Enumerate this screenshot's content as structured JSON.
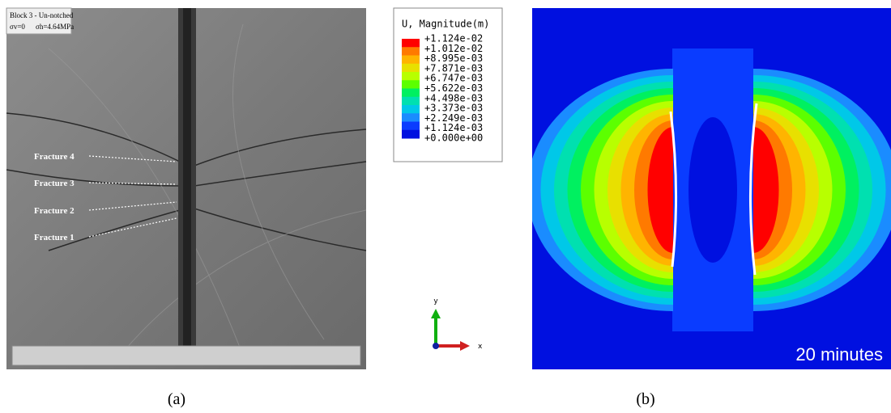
{
  "panel_a": {
    "label": "(a)",
    "info": {
      "line1": "Block 3 - Un-notched",
      "line2a": "σv=0",
      "line2b": "σh=4.64MPa"
    },
    "fractures": [
      "Fracture 4",
      "Fracture 3",
      "Fracture 2",
      "Fracture 1"
    ]
  },
  "panel_b": {
    "label": "(b)",
    "legend": {
      "title": "U, Magnitude(m)",
      "levels": [
        "+1.124e-02",
        "+1.012e-02",
        "+8.995e-03",
        "+7.871e-03",
        "+6.747e-03",
        "+5.622e-03",
        "+4.498e-03",
        "+3.373e-03",
        "+2.249e-03",
        "+1.124e-03",
        "+0.000e+00"
      ],
      "colors": [
        "#ff0000",
        "#ff7a00",
        "#ffb400",
        "#e8e000",
        "#b8ff00",
        "#5cff00",
        "#00f060",
        "#00e0b0",
        "#00c8e8",
        "#1a8cff",
        "#0a3cff",
        "#0010e0"
      ]
    },
    "axes": {
      "y": "y",
      "x": "x"
    },
    "time": "20 minutes"
  }
}
